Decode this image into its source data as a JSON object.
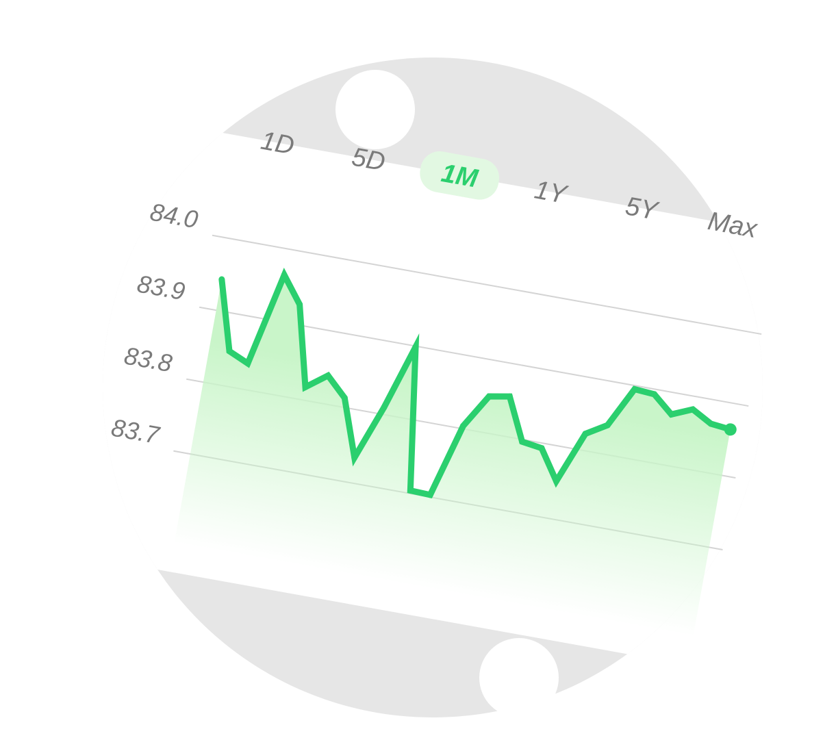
{
  "colors": {
    "backdrop": "#e6e6e6",
    "line": "#2bcf6e",
    "fill": "#c9f5c9",
    "active_pill": "#e2f8e2",
    "active_text": "#2bcf6e",
    "label_text": "#7a7a7a",
    "grid": "#d4d4d4"
  },
  "range_selector": {
    "items": [
      {
        "label": "1D",
        "active": false
      },
      {
        "label": "5D",
        "active": false
      },
      {
        "label": "1M",
        "active": true
      },
      {
        "label": "1Y",
        "active": false
      },
      {
        "label": "5Y",
        "active": false
      },
      {
        "label": "Max",
        "active": false
      }
    ]
  },
  "chart_data": {
    "type": "area",
    "y_ticks": [
      "84.0",
      "83.9",
      "83.8",
      "83.7"
    ],
    "ylim": [
      83.7,
      84.0
    ],
    "grid": true,
    "legend": "none",
    "series": [
      {
        "values": [
          83.943,
          83.848,
          83.836,
          83.964,
          83.928,
          83.818,
          83.839,
          83.813,
          83.735,
          83.81,
          83.899,
          83.704,
          83.703,
          83.804,
          83.85,
          83.855,
          83.797,
          83.793,
          83.752,
          83.823,
          83.84,
          83.895,
          83.893,
          83.87,
          83.882,
          83.867,
          83.864
        ]
      }
    ]
  }
}
